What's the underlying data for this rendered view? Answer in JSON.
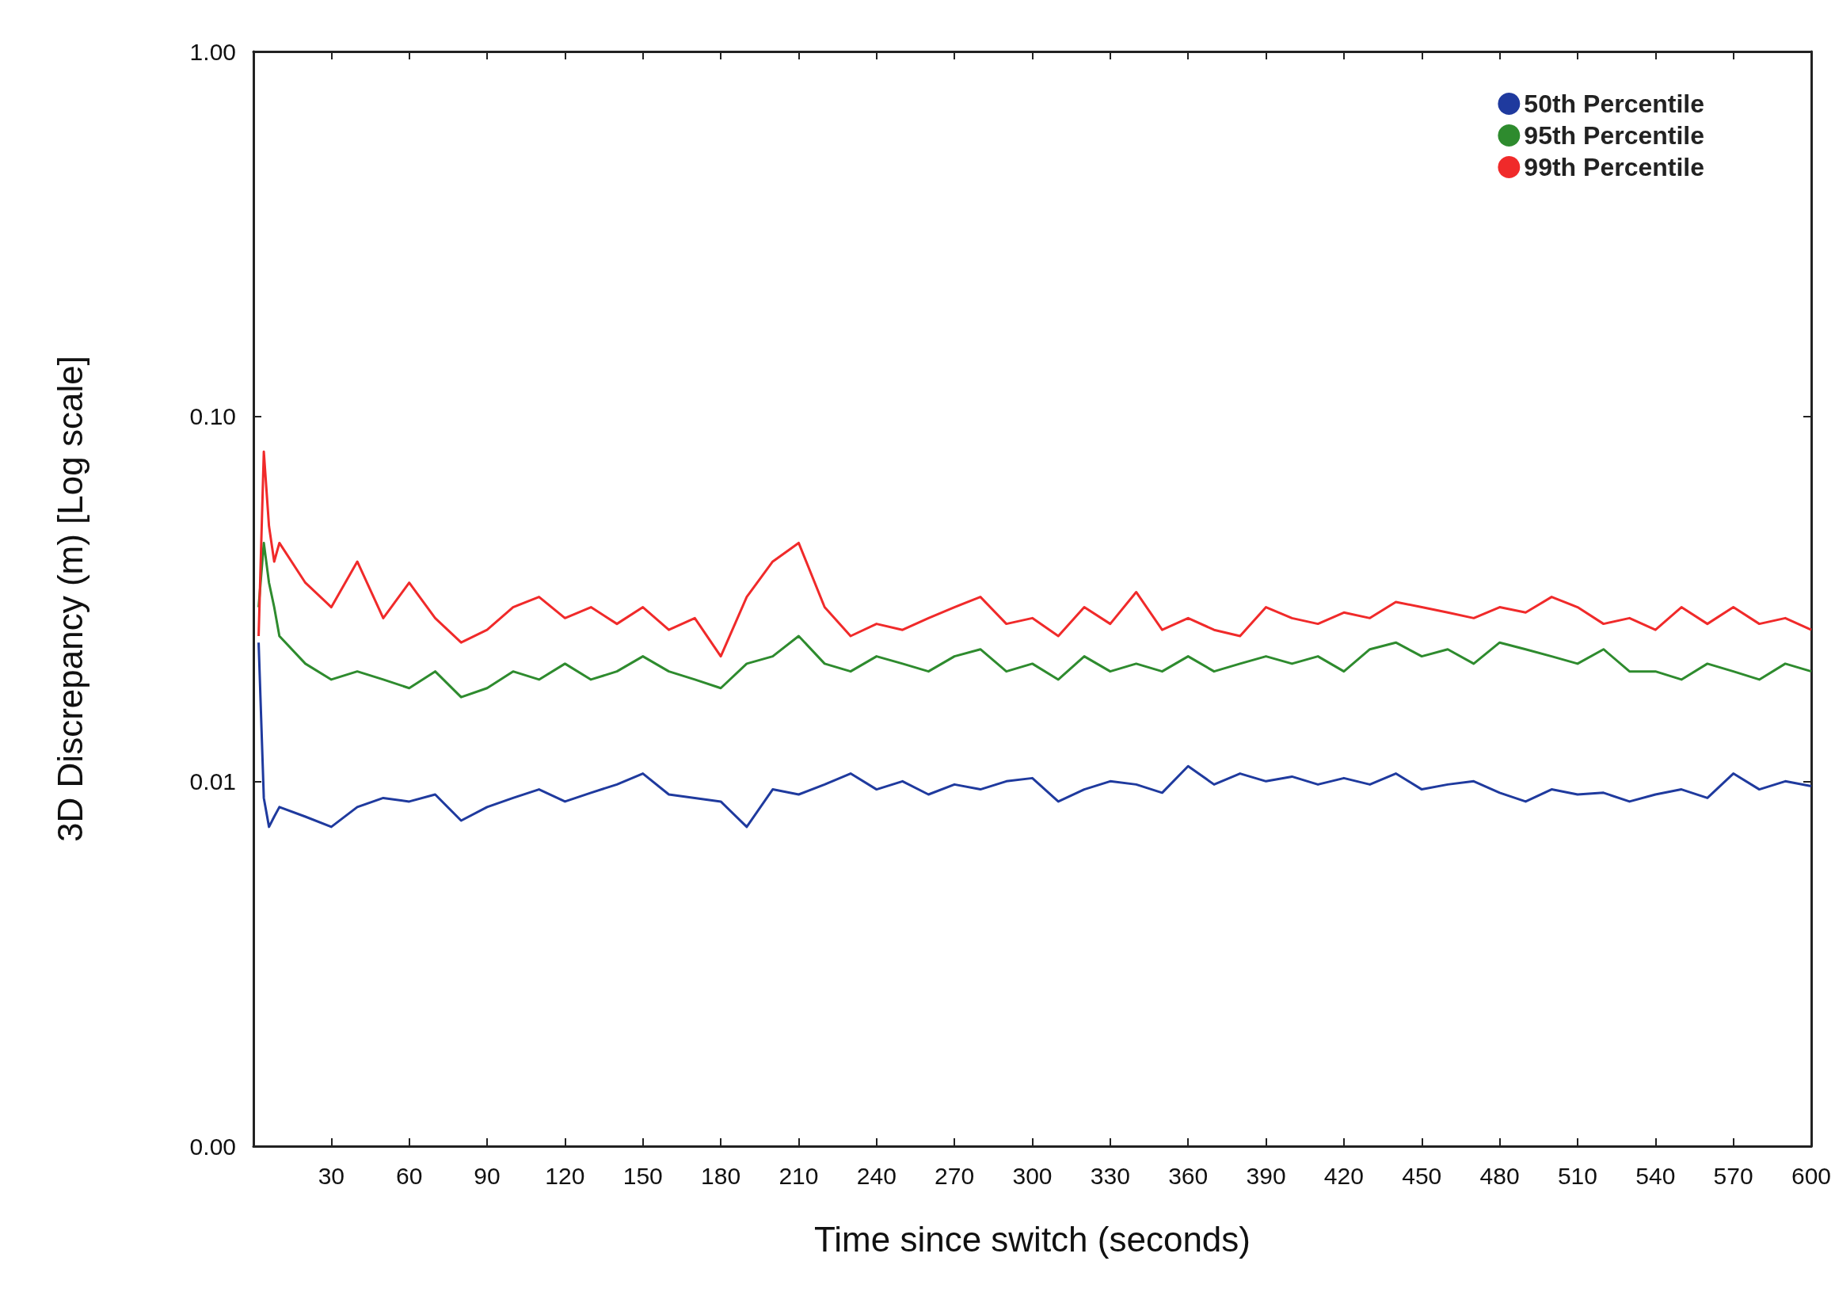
{
  "chart_data": {
    "type": "line",
    "xlabel": "Time since switch (seconds)",
    "ylabel": "3D Discrepancy (m) [Log scale]",
    "x": [
      2,
      4,
      6,
      8,
      10,
      20,
      30,
      40,
      50,
      60,
      70,
      80,
      90,
      100,
      110,
      120,
      130,
      140,
      150,
      160,
      170,
      180,
      190,
      200,
      210,
      220,
      230,
      240,
      250,
      260,
      270,
      280,
      290,
      300,
      310,
      320,
      330,
      340,
      350,
      360,
      370,
      380,
      390,
      400,
      410,
      420,
      430,
      440,
      450,
      460,
      470,
      480,
      490,
      500,
      510,
      520,
      530,
      540,
      550,
      560,
      570,
      580,
      590,
      600
    ],
    "series": [
      {
        "name": "50th Percentile",
        "color": "#1f3a9e",
        "values": [
          0.024,
          0.009,
          0.0075,
          0.008,
          0.0085,
          0.008,
          0.0075,
          0.0085,
          0.009,
          0.0088,
          0.0092,
          0.0078,
          0.0085,
          0.009,
          0.0095,
          0.0088,
          0.0093,
          0.0098,
          0.0105,
          0.0092,
          0.009,
          0.0088,
          0.0075,
          0.0095,
          0.0092,
          0.0098,
          0.0105,
          0.0095,
          0.01,
          0.0092,
          0.0098,
          0.0095,
          0.01,
          0.0102,
          0.0088,
          0.0095,
          0.01,
          0.0098,
          0.0093,
          0.011,
          0.0098,
          0.0105,
          0.01,
          0.0103,
          0.0098,
          0.0102,
          0.0098,
          0.0105,
          0.0095,
          0.0098,
          0.01,
          0.0093,
          0.0088,
          0.0095,
          0.0092,
          0.0093,
          0.0088,
          0.0092,
          0.0095,
          0.009,
          0.0105,
          0.0095,
          0.01,
          0.0097
        ]
      },
      {
        "name": "95th Percentile",
        "color": "#2e8b2e",
        "values": [
          0.03,
          0.045,
          0.035,
          0.03,
          0.025,
          0.021,
          0.019,
          0.02,
          0.019,
          0.018,
          0.02,
          0.017,
          0.018,
          0.02,
          0.019,
          0.021,
          0.019,
          0.02,
          0.022,
          0.02,
          0.019,
          0.018,
          0.021,
          0.022,
          0.025,
          0.021,
          0.02,
          0.022,
          0.021,
          0.02,
          0.022,
          0.023,
          0.02,
          0.021,
          0.019,
          0.022,
          0.02,
          0.021,
          0.02,
          0.022,
          0.02,
          0.021,
          0.022,
          0.021,
          0.022,
          0.02,
          0.023,
          0.024,
          0.022,
          0.023,
          0.021,
          0.024,
          0.023,
          0.022,
          0.021,
          0.023,
          0.02,
          0.02,
          0.019,
          0.021,
          0.02,
          0.019,
          0.021,
          0.02
        ]
      },
      {
        "name": "99th Percentile",
        "color": "#f02a2a",
        "values": [
          0.025,
          0.08,
          0.05,
          0.04,
          0.045,
          0.035,
          0.03,
          0.04,
          0.028,
          0.035,
          0.028,
          0.024,
          0.026,
          0.03,
          0.032,
          0.028,
          0.03,
          0.027,
          0.03,
          0.026,
          0.028,
          0.022,
          0.032,
          0.04,
          0.045,
          0.03,
          0.025,
          0.027,
          0.026,
          0.028,
          0.03,
          0.032,
          0.027,
          0.028,
          0.025,
          0.03,
          0.027,
          0.033,
          0.026,
          0.028,
          0.026,
          0.025,
          0.03,
          0.028,
          0.027,
          0.029,
          0.028,
          0.031,
          0.03,
          0.029,
          0.028,
          0.03,
          0.029,
          0.032,
          0.03,
          0.027,
          0.028,
          0.026,
          0.03,
          0.027,
          0.03,
          0.027,
          0.028,
          0.026
        ]
      }
    ],
    "xlim": [
      0,
      600
    ],
    "xticks": [
      30,
      60,
      90,
      120,
      150,
      180,
      210,
      240,
      270,
      300,
      330,
      360,
      390,
      420,
      450,
      480,
      510,
      540,
      570,
      600
    ],
    "ylim": [
      0.001,
      1
    ],
    "yticks": [
      {
        "value": 0.001,
        "label": "0.00"
      },
      {
        "value": 0.01,
        "label": "0.01"
      },
      {
        "value": 0.1,
        "label": "0.10"
      },
      {
        "value": 1,
        "label": "1.00"
      }
    ],
    "log": "y",
    "grid": false,
    "legend": "top right",
    "marker": "none",
    "line_style": "solid"
  }
}
